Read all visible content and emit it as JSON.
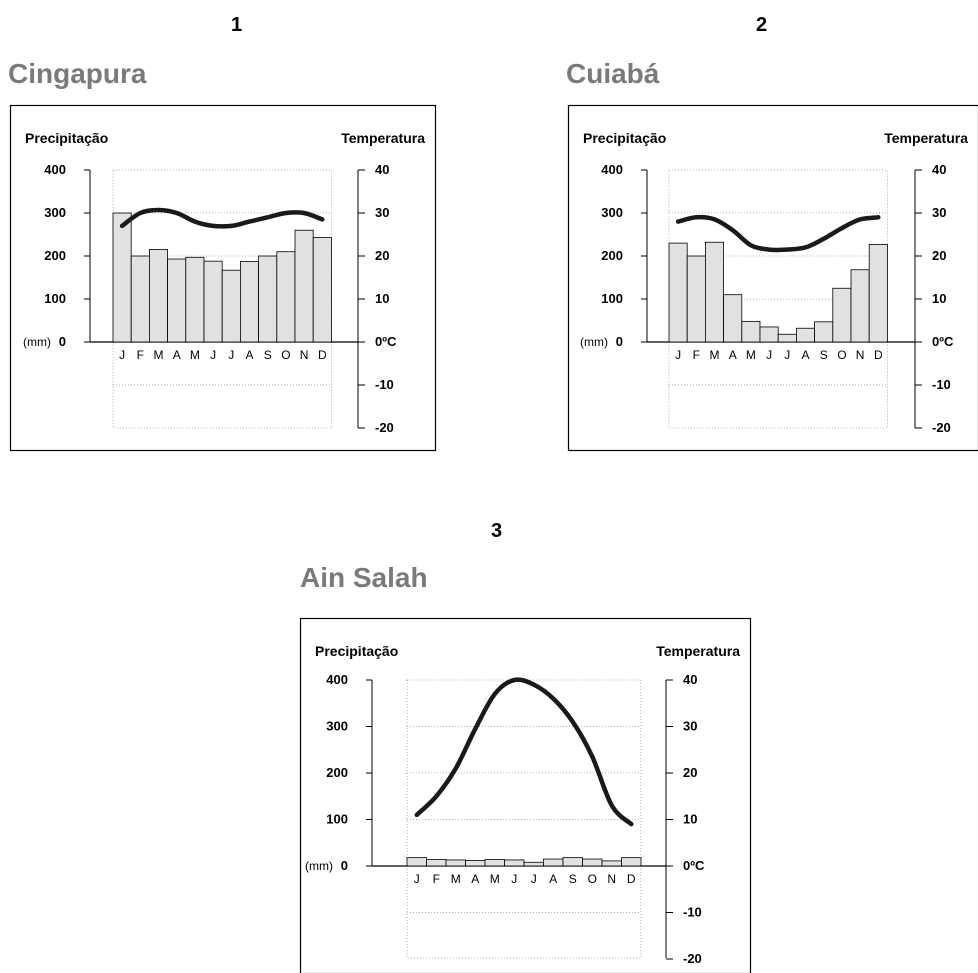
{
  "chart_data": [
    {
      "type": "bar+line",
      "number": "1",
      "title": "Cingapura",
      "left_axis_label": "Precipitação",
      "right_axis_label": "Temperatura",
      "unit_label": "(mm)",
      "categories": [
        "J",
        "F",
        "M",
        "A",
        "M",
        "J",
        "J",
        "A",
        "S",
        "O",
        "N",
        "D"
      ],
      "precip_ticks": [
        "400",
        "300",
        "200",
        "100",
        "0"
      ],
      "temp_ticks": [
        "40",
        "30",
        "20",
        "10",
        "0ºC",
        "-10",
        "-20"
      ],
      "precip_lim": [
        0,
        400
      ],
      "temp_lim": [
        -20,
        40
      ],
      "series": [
        {
          "name": "Precipitação",
          "values": [
            300,
            200,
            215,
            193,
            197,
            188,
            167,
            187,
            200,
            210,
            260,
            243
          ]
        },
        {
          "name": "Temperatura",
          "values": [
            27,
            30,
            30.7,
            30,
            28,
            27,
            27,
            28,
            29,
            30,
            30,
            28.5
          ]
        }
      ]
    },
    {
      "type": "bar+line",
      "number": "2",
      "title": "Cuiabá",
      "left_axis_label": "Precipitação",
      "right_axis_label": "Temperatura",
      "unit_label": "(mm)",
      "categories": [
        "J",
        "F",
        "M",
        "A",
        "M",
        "J",
        "J",
        "A",
        "S",
        "O",
        "N",
        "D"
      ],
      "precip_ticks": [
        "400",
        "300",
        "200",
        "100",
        "0"
      ],
      "temp_ticks": [
        "40",
        "30",
        "20",
        "10",
        "0ºC",
        "-10",
        "-20"
      ],
      "precip_lim": [
        0,
        400
      ],
      "temp_lim": [
        -20,
        40
      ],
      "series": [
        {
          "name": "Precipitação",
          "values": [
            230,
            200,
            232,
            110,
            48,
            35,
            18,
            32,
            47,
            125,
            168,
            227
          ]
        },
        {
          "name": "Temperatura",
          "values": [
            28,
            29,
            28.5,
            26,
            22.5,
            21.5,
            21.5,
            22,
            24,
            26.5,
            28.5,
            29
          ]
        }
      ]
    },
    {
      "type": "bar+line",
      "number": "3",
      "title": "Ain Salah",
      "left_axis_label": "Precipitação",
      "right_axis_label": "Temperatura",
      "unit_label": "(mm)",
      "categories": [
        "J",
        "F",
        "M",
        "A",
        "M",
        "J",
        "J",
        "A",
        "S",
        "O",
        "N",
        "D"
      ],
      "precip_ticks": [
        "400",
        "300",
        "200",
        "100",
        "0"
      ],
      "temp_ticks": [
        "40",
        "30",
        "20",
        "10",
        "0ºC",
        "-10",
        "-20"
      ],
      "precip_lim": [
        0,
        400
      ],
      "temp_lim": [
        -20,
        40
      ],
      "series": [
        {
          "name": "Precipitação",
          "values": [
            18,
            14,
            13,
            12,
            14,
            13,
            8,
            15,
            18,
            15,
            11,
            18
          ]
        },
        {
          "name": "Temperatura",
          "values": [
            11,
            15,
            21,
            29.5,
            37,
            40,
            39,
            36,
            31,
            23.5,
            13,
            9
          ]
        }
      ]
    }
  ]
}
